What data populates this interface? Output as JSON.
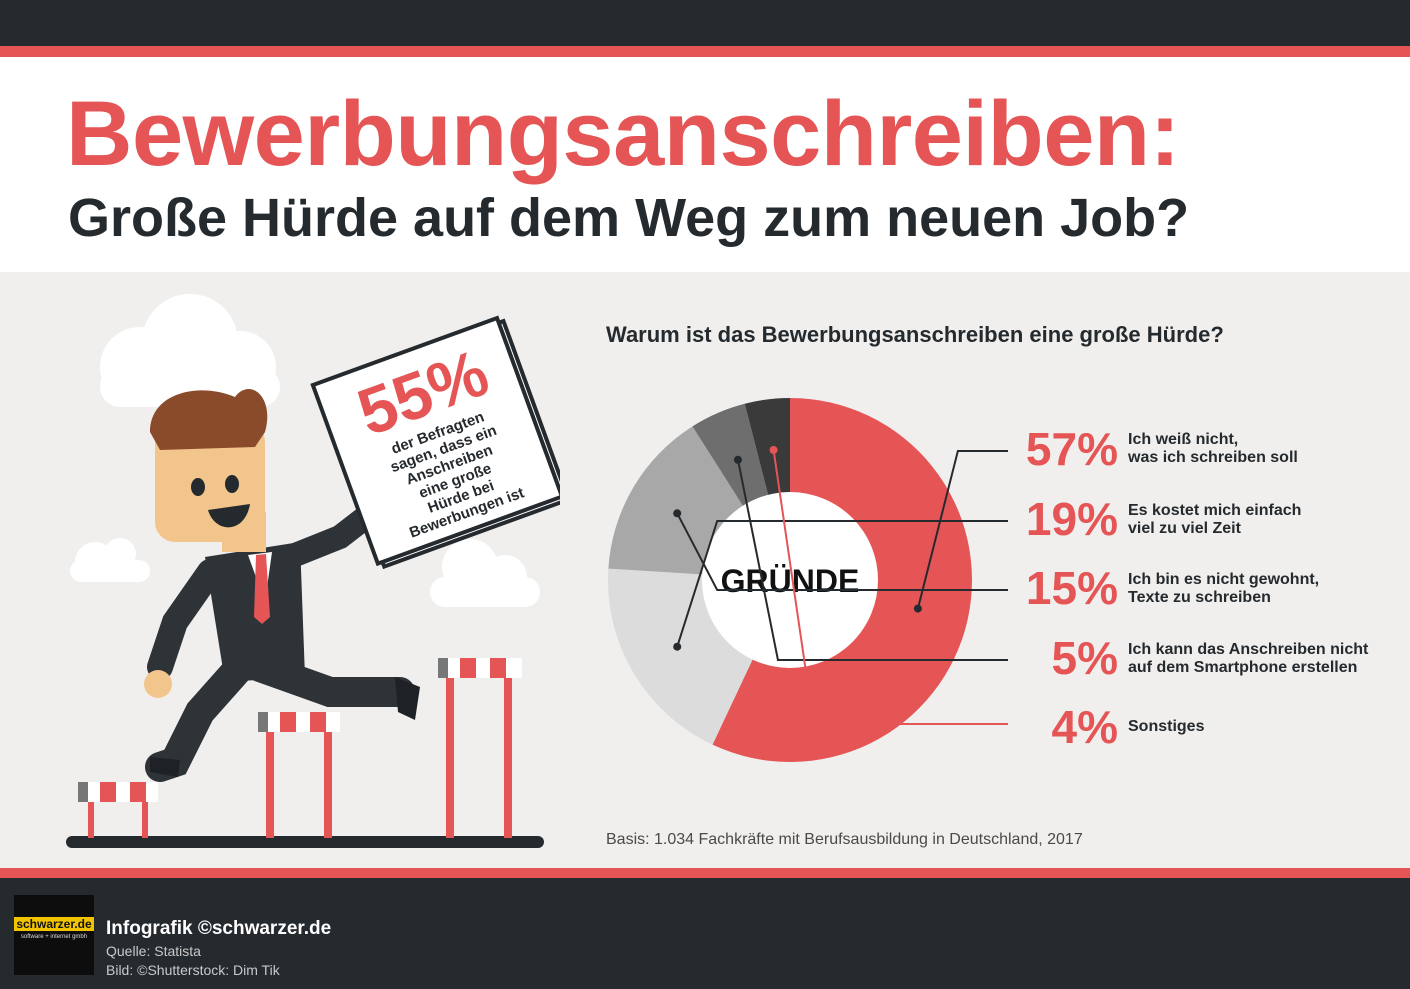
{
  "header": {
    "title": "Bewerbungsanschreiben:",
    "subtitle": "Große Hürde auf dem Weg zum neuen Job?"
  },
  "sign": {
    "percent": "55%",
    "lines": [
      "der Befragten",
      "sagen, dass ein",
      "Anschreiben",
      "eine große",
      "Hürde bei",
      "Bewerbungen ist"
    ]
  },
  "chart_data": {
    "type": "pie",
    "title": "Warum ist das Bewerbungsanschreiben eine große Hürde?",
    "center_label": "GRÜNDE",
    "slices": [
      {
        "value": 57,
        "label": "57%",
        "text_line1": "Ich weiß nicht,",
        "text_line2": "was ich schreiben soll",
        "color": "#e55555"
      },
      {
        "value": 19,
        "label": "19%",
        "text_line1": "Es kostet mich einfach",
        "text_line2": "viel zu viel Zeit",
        "color": "#dcdcdc"
      },
      {
        "value": 15,
        "label": "15%",
        "text_line1": "Ich bin es nicht gewohnt,",
        "text_line2": "Texte zu schreiben",
        "color": "#a8a8a8"
      },
      {
        "value": 5,
        "label": "5%",
        "text_line1": "Ich kann das Anschreiben nicht",
        "text_line2": "auf dem Smartphone erstellen",
        "color": "#6e6e6e"
      },
      {
        "value": 4,
        "label": "4%",
        "text_line1": "Sonstiges",
        "text_line2": "",
        "color": "#3a3a3a"
      }
    ],
    "note": "Basis: 1.034 Fachkräfte mit Berufsausbildung in Deutschland, 2017"
  },
  "footer": {
    "logo": "schwarzer.de",
    "logo_tagline": "software + internet gmbh",
    "credit": "Infografik ©schwarzer.de",
    "source": "Quelle: Statista",
    "image_credit": "Bild: ©Shutterstock: Dim Tik"
  },
  "colors": {
    "accent": "#e55555",
    "dark": "#252a2e",
    "panel": "#f0efed"
  }
}
